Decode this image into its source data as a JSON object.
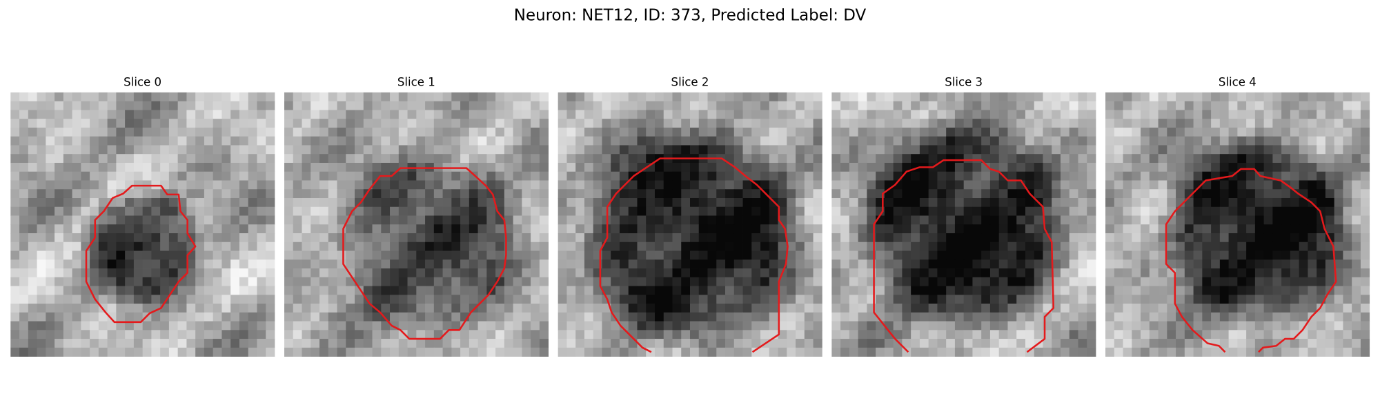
{
  "title": "Neuron: NET12, ID: 373, Predicted Label: DV",
  "panels": [
    {
      "title": "Slice 0"
    },
    {
      "title": "Slice 1"
    },
    {
      "title": "Slice 2"
    },
    {
      "title": "Slice 3"
    },
    {
      "title": "Slice 4"
    }
  ]
}
